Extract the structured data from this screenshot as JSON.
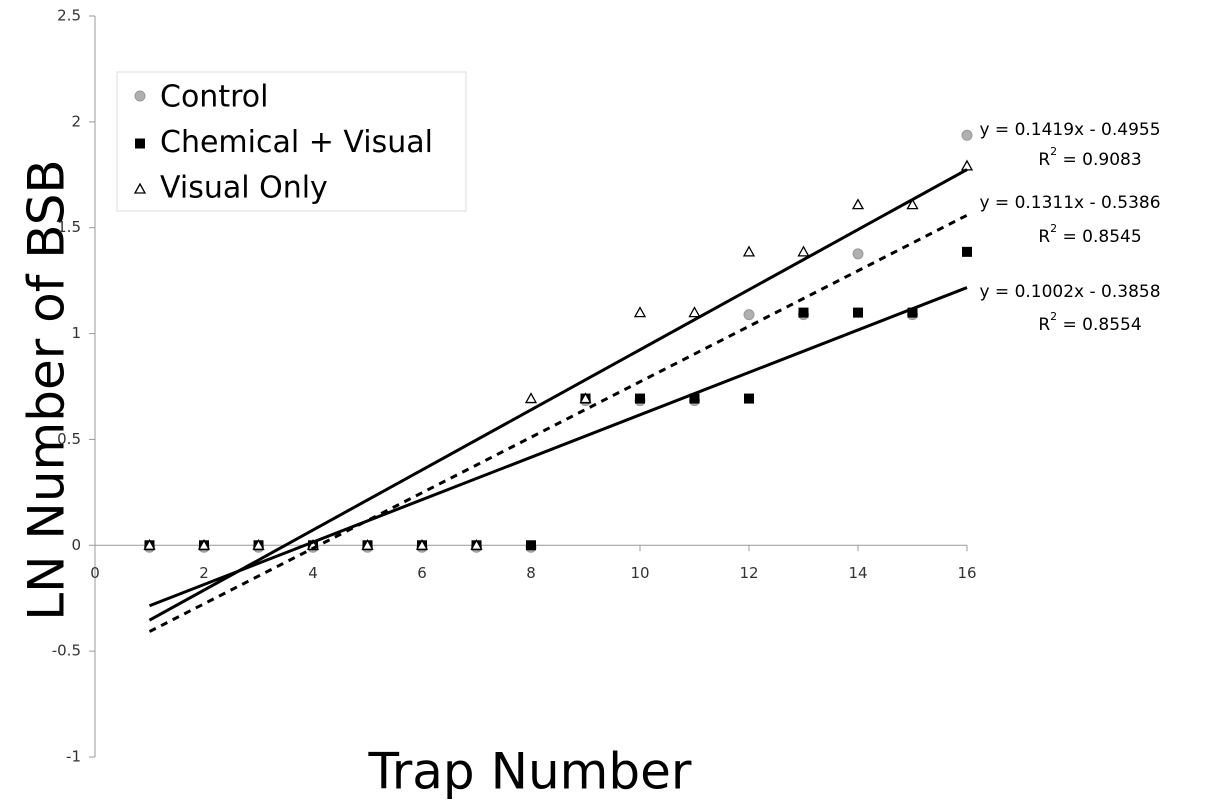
{
  "chart_data": {
    "type": "scatter",
    "xlabel": "Trap Number",
    "ylabel": "LN Number of BSB",
    "xlim": [
      0,
      16
    ],
    "xticks": [
      0,
      2,
      4,
      6,
      8,
      10,
      12,
      14,
      16
    ],
    "ylim": [
      -1,
      2.5
    ],
    "yticks": [
      -1,
      -0.5,
      0,
      0.5,
      1,
      1.5,
      2,
      2.5
    ],
    "series": [
      {
        "name": "Control",
        "color": "#b0b0b0",
        "marker": "circle",
        "x": [
          1,
          2,
          3,
          4,
          5,
          6,
          7,
          8,
          9,
          10,
          11,
          12,
          13,
          14,
          15,
          16
        ],
        "values": [
          0,
          0,
          0,
          0,
          0,
          0,
          0,
          0,
          0.693,
          0.693,
          0.693,
          1.099,
          1.099,
          1.386,
          1.099,
          1.946
        ],
        "trendline": {
          "slope": 0.1311,
          "intercept": -0.5386,
          "dashed": true,
          "equation": "y = 0.1311x - 0.5386",
          "r2": [
            "R",
            "2",
            " = 0.8545"
          ]
        }
      },
      {
        "name": "Chemical + Visual",
        "color": "#000000",
        "marker": "square",
        "x": [
          1,
          2,
          3,
          4,
          5,
          6,
          7,
          8,
          9,
          10,
          11,
          12,
          13,
          14,
          15,
          16
        ],
        "values": [
          0,
          0,
          0,
          0,
          0,
          0,
          0,
          0,
          0.693,
          0.693,
          0.693,
          0.693,
          1.099,
          1.099,
          1.099,
          1.386
        ],
        "trendline": {
          "slope": 0.1002,
          "intercept": -0.3858,
          "dashed": false,
          "equation": "y = 0.1002x - 0.3858",
          "r2": [
            "R",
            "2",
            " = 0.8554"
          ]
        }
      },
      {
        "name": "Visual Only",
        "color": "#000000",
        "marker": "triangle",
        "x": [
          1,
          2,
          3,
          4,
          5,
          6,
          7,
          8,
          9,
          10,
          11,
          12,
          13,
          14,
          15,
          16
        ],
        "values": [
          0,
          0,
          0,
          0,
          0,
          0,
          0,
          0.693,
          0.693,
          1.099,
          1.099,
          1.386,
          1.386,
          1.609,
          1.609,
          1.792
        ],
        "trendline": {
          "slope": 0.1419,
          "intercept": -0.4955,
          "dashed": false,
          "equation": "y = 0.1419x - 0.4955",
          "r2": [
            "R",
            "2",
            " = 0.9083"
          ]
        }
      }
    ]
  }
}
